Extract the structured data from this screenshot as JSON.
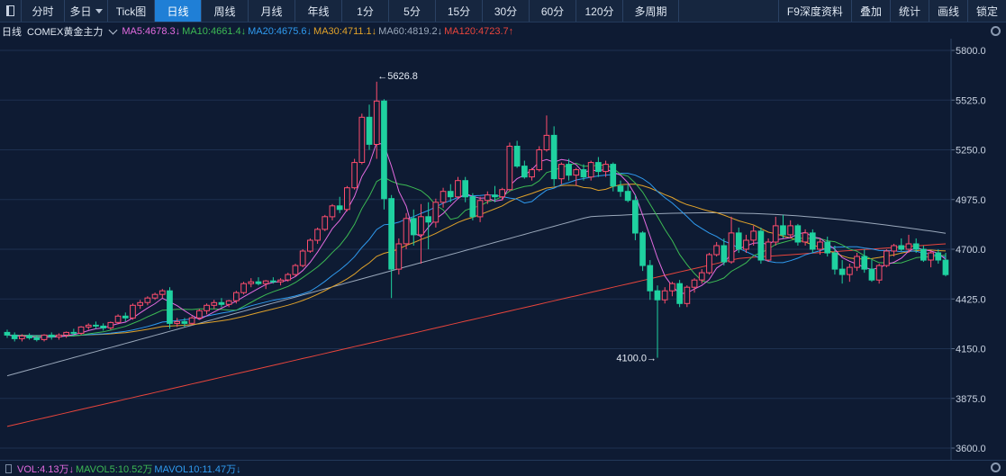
{
  "toolbar": {
    "items": [
      "分时",
      "多日",
      "Tick图",
      "日线",
      "周线",
      "月线",
      "年线",
      "1分",
      "5分",
      "15分",
      "30分",
      "60分",
      "120分",
      "多周期"
    ],
    "active": "日线",
    "right_items": [
      "F9深度资料",
      "叠加",
      "统计",
      "画线",
      "锁定"
    ]
  },
  "legend": {
    "period": "日线",
    "symbol": "COMEX黄金主力",
    "ma": [
      {
        "label": "MA5:4678.3↓",
        "color": "#e36be0"
      },
      {
        "label": "MA10:4661.4↓",
        "color": "#3cba54"
      },
      {
        "label": "MA20:4675.6↓",
        "color": "#2f9bf0"
      },
      {
        "label": "MA30:4711.1↓",
        "color": "#e0a22a"
      },
      {
        "label": "MA60:4819.2↓",
        "color": "#9aa8bb"
      },
      {
        "label": "MA120:4723.7↑",
        "color": "#e8453c"
      }
    ]
  },
  "volume_legend": [
    {
      "label": "VOL:4.13万↓",
      "color": "#e36be0"
    },
    {
      "label": "MAVOL5:10.52万",
      "color": "#3cba54"
    },
    {
      "label": "MAVOL10:11.47万↓",
      "color": "#2f9bf0"
    }
  ],
  "chart_data": {
    "type": "candlestick",
    "y_ticks": [
      "5800.0",
      "5525.0",
      "5250.0",
      "4975.0",
      "4700.0",
      "4425.0",
      "4150.0",
      "3875.0",
      "3600.0"
    ],
    "ylim": [
      3600,
      5800
    ],
    "annotations": {
      "high": "←5626.8",
      "low": "4100.0→"
    },
    "high_value": 5626.8,
    "low_value": 4100.0,
    "candles": [
      [
        4240,
        4255,
        4210,
        4225
      ],
      [
        4225,
        4240,
        4190,
        4205
      ],
      [
        4205,
        4230,
        4190,
        4220
      ],
      [
        4220,
        4235,
        4200,
        4210
      ],
      [
        4210,
        4225,
        4190,
        4200
      ],
      [
        4200,
        4230,
        4190,
        4225
      ],
      [
        4225,
        4240,
        4200,
        4215
      ],
      [
        4215,
        4235,
        4200,
        4225
      ],
      [
        4225,
        4245,
        4210,
        4240
      ],
      [
        4240,
        4260,
        4220,
        4235
      ],
      [
        4235,
        4275,
        4225,
        4270
      ],
      [
        4270,
        4290,
        4255,
        4280
      ],
      [
        4280,
        4300,
        4260,
        4275
      ],
      [
        4275,
        4290,
        4250,
        4265
      ],
      [
        4265,
        4300,
        4255,
        4295
      ],
      [
        4295,
        4340,
        4285,
        4330
      ],
      [
        4330,
        4350,
        4300,
        4320
      ],
      [
        4320,
        4400,
        4310,
        4390
      ],
      [
        4390,
        4420,
        4370,
        4405
      ],
      [
        4405,
        4440,
        4390,
        4430
      ],
      [
        4430,
        4460,
        4420,
        4450
      ],
      [
        4450,
        4480,
        4430,
        4470
      ],
      [
        4470,
        4490,
        4260,
        4290
      ],
      [
        4290,
        4320,
        4270,
        4300
      ],
      [
        4300,
        4320,
        4270,
        4290
      ],
      [
        4290,
        4330,
        4280,
        4320
      ],
      [
        4320,
        4370,
        4310,
        4360
      ],
      [
        4360,
        4400,
        4340,
        4390
      ],
      [
        4390,
        4420,
        4370,
        4405
      ],
      [
        4405,
        4430,
        4380,
        4395
      ],
      [
        4395,
        4420,
        4380,
        4415
      ],
      [
        4415,
        4470,
        4400,
        4460
      ],
      [
        4460,
        4520,
        4450,
        4510
      ],
      [
        4510,
        4540,
        4490,
        4520
      ],
      [
        4520,
        4545,
        4500,
        4510
      ],
      [
        4510,
        4530,
        4480,
        4525
      ],
      [
        4525,
        4545,
        4510,
        4520
      ],
      [
        4520,
        4540,
        4500,
        4530
      ],
      [
        4530,
        4570,
        4520,
        4560
      ],
      [
        4560,
        4620,
        4550,
        4610
      ],
      [
        4610,
        4700,
        4600,
        4690
      ],
      [
        4690,
        4760,
        4680,
        4750
      ],
      [
        4750,
        4820,
        4730,
        4810
      ],
      [
        4810,
        4890,
        4800,
        4880
      ],
      [
        4880,
        4950,
        4860,
        4940
      ],
      [
        4940,
        4990,
        4900,
        4920
      ],
      [
        4920,
        5050,
        4910,
        5040
      ],
      [
        5040,
        5200,
        5030,
        5180
      ],
      [
        5180,
        5450,
        5170,
        5430
      ],
      [
        5430,
        5500,
        5250,
        5280
      ],
      [
        5280,
        5626.8,
        5200,
        5520
      ],
      [
        5520,
        5530,
        4920,
        4980
      ],
      [
        4980,
        5000,
        4430,
        4590
      ],
      [
        4590,
        4760,
        4560,
        4730
      ],
      [
        4730,
        4900,
        4700,
        4870
      ],
      [
        4870,
        4920,
        4720,
        4780
      ],
      [
        4780,
        4950,
        4620,
        4880
      ],
      [
        4880,
        4960,
        4700,
        4850
      ],
      [
        4850,
        4980,
        4820,
        4960
      ],
      [
        4960,
        5040,
        4930,
        5020
      ],
      [
        5020,
        5060,
        4960,
        4990
      ],
      [
        4990,
        5100,
        4980,
        5080
      ],
      [
        5080,
        5100,
        4960,
        4990
      ],
      [
        4990,
        5010,
        4860,
        4880
      ],
      [
        4880,
        4990,
        4850,
        4970
      ],
      [
        4970,
        5020,
        4950,
        5000
      ],
      [
        5000,
        5050,
        4960,
        4990
      ],
      [
        4990,
        5040,
        4970,
        5030
      ],
      [
        5030,
        5290,
        5020,
        5270
      ],
      [
        5270,
        5300,
        5150,
        5160
      ],
      [
        5160,
        5190,
        5090,
        5100
      ],
      [
        5100,
        5150,
        5080,
        5140
      ],
      [
        5140,
        5270,
        5130,
        5250
      ],
      [
        5250,
        5440,
        5240,
        5330
      ],
      [
        5330,
        5380,
        5050,
        5090
      ],
      [
        5090,
        5180,
        5060,
        5170
      ],
      [
        5170,
        5200,
        5080,
        5110
      ],
      [
        5110,
        5150,
        5050,
        5140
      ],
      [
        5140,
        5170,
        5080,
        5100
      ],
      [
        5100,
        5190,
        5080,
        5180
      ],
      [
        5180,
        5210,
        5100,
        5130
      ],
      [
        5130,
        5190,
        5100,
        5170
      ],
      [
        5170,
        5180,
        5020,
        5050
      ],
      [
        5050,
        5080,
        4990,
        5020
      ],
      [
        5020,
        5060,
        4960,
        4970
      ],
      [
        4970,
        5000,
        4750,
        4790
      ],
      [
        4790,
        4800,
        4580,
        4610
      ],
      [
        4610,
        4640,
        4420,
        4470
      ],
      [
        4470,
        4500,
        4100,
        4420
      ],
      [
        4420,
        4490,
        4400,
        4470
      ],
      [
        4470,
        4520,
        4440,
        4510
      ],
      [
        4510,
        4530,
        4380,
        4400
      ],
      [
        4400,
        4500,
        4380,
        4490
      ],
      [
        4490,
        4540,
        4460,
        4530
      ],
      [
        4530,
        4590,
        4510,
        4570
      ],
      [
        4570,
        4680,
        4560,
        4670
      ],
      [
        4670,
        4740,
        4660,
        4720
      ],
      [
        4720,
        4760,
        4610,
        4630
      ],
      [
        4630,
        4880,
        4620,
        4790
      ],
      [
        4790,
        4820,
        4680,
        4700
      ],
      [
        4700,
        4780,
        4680,
        4750
      ],
      [
        4750,
        4830,
        4720,
        4800
      ],
      [
        4800,
        4820,
        4620,
        4640
      ],
      [
        4640,
        4760,
        4630,
        4740
      ],
      [
        4740,
        4880,
        4720,
        4830
      ],
      [
        4830,
        4890,
        4760,
        4780
      ],
      [
        4780,
        4860,
        4760,
        4830
      ],
      [
        4830,
        4840,
        4720,
        4740
      ],
      [
        4740,
        4810,
        4720,
        4790
      ],
      [
        4790,
        4810,
        4680,
        4700
      ],
      [
        4700,
        4760,
        4670,
        4740
      ],
      [
        4740,
        4770,
        4660,
        4680
      ],
      [
        4680,
        4720,
        4560,
        4590
      ],
      [
        4590,
        4640,
        4510,
        4560
      ],
      [
        4560,
        4620,
        4520,
        4600
      ],
      [
        4600,
        4680,
        4580,
        4660
      ],
      [
        4660,
        4700,
        4570,
        4590
      ],
      [
        4590,
        4640,
        4520,
        4530
      ],
      [
        4530,
        4620,
        4510,
        4610
      ],
      [
        4610,
        4700,
        4600,
        4690
      ],
      [
        4690,
        4730,
        4660,
        4720
      ],
      [
        4720,
        4760,
        4690,
        4700
      ],
      [
        4700,
        4780,
        4680,
        4730
      ],
      [
        4730,
        4760,
        4680,
        4700
      ],
      [
        4700,
        4720,
        4630,
        4640
      ],
      [
        4640,
        4690,
        4600,
        4680
      ],
      [
        4680,
        4700,
        4620,
        4640
      ],
      [
        4640,
        4680,
        4550,
        4560
      ]
    ]
  }
}
